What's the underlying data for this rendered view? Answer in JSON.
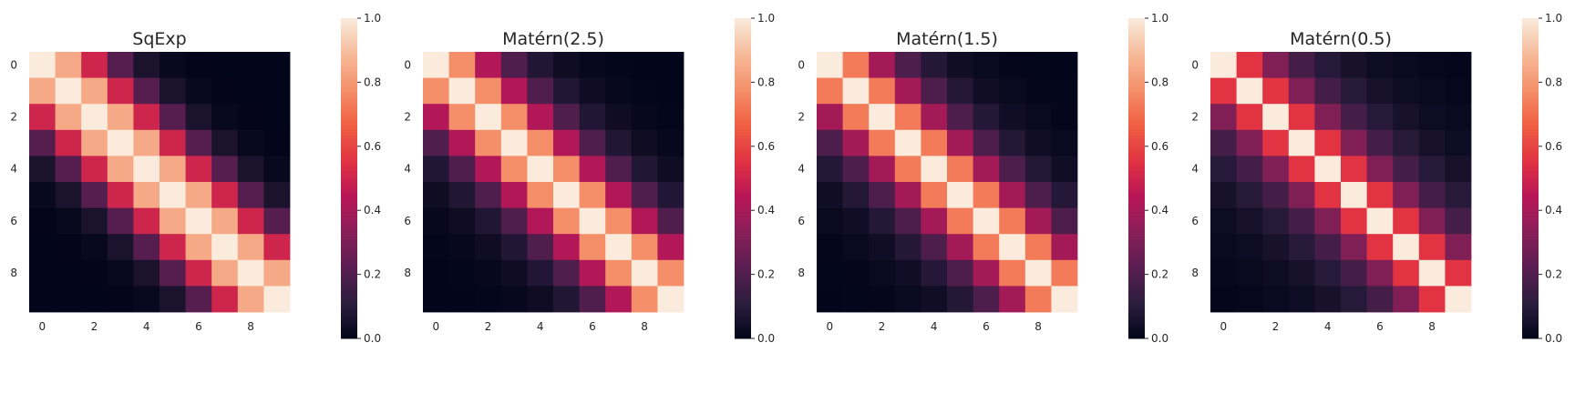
{
  "figure": {
    "description_title": ""
  },
  "chart_data": [
    {
      "type": "heatmap",
      "title": "SqExp",
      "n": 10,
      "kernel": "sqexp",
      "lengthscale": 1.7,
      "x_ticks": [
        "0",
        "2",
        "4",
        "6",
        "8"
      ],
      "y_ticks": [
        "0",
        "2",
        "4",
        "6",
        "8"
      ],
      "colorbar": {
        "min": 0.0,
        "max": 1.0,
        "ticks": [
          "0.0",
          "0.2",
          "0.4",
          "0.6",
          "0.8",
          "1.0"
        ]
      },
      "colormap": "rocket"
    },
    {
      "type": "heatmap",
      "title": "Matérn(2.5)",
      "n": 10,
      "kernel": "matern52",
      "lengthscale": 1.7,
      "x_ticks": [
        "0",
        "2",
        "4",
        "6",
        "8"
      ],
      "y_ticks": [
        "0",
        "2",
        "4",
        "6",
        "8"
      ],
      "colorbar": {
        "min": 0.0,
        "max": 1.0,
        "ticks": [
          "0.0",
          "0.2",
          "0.4",
          "0.6",
          "0.8",
          "1.0"
        ]
      },
      "colormap": "rocket"
    },
    {
      "type": "heatmap",
      "title": "Matérn(1.5)",
      "n": 10,
      "kernel": "matern32",
      "lengthscale": 1.7,
      "x_ticks": [
        "0",
        "2",
        "4",
        "6",
        "8"
      ],
      "y_ticks": [
        "0",
        "2",
        "4",
        "6",
        "8"
      ],
      "colorbar": {
        "min": 0.0,
        "max": 1.0,
        "ticks": [
          "0.0",
          "0.2",
          "0.4",
          "0.6",
          "0.8",
          "1.0"
        ]
      },
      "colormap": "rocket"
    },
    {
      "type": "heatmap",
      "title": "Matérn(0.5)",
      "n": 10,
      "kernel": "matern12",
      "lengthscale": 1.7,
      "x_ticks": [
        "0",
        "2",
        "4",
        "6",
        "8"
      ],
      "y_ticks": [
        "0",
        "2",
        "4",
        "6",
        "8"
      ],
      "colorbar": {
        "min": 0.0,
        "max": 1.0,
        "ticks": [
          "0.0",
          "0.2",
          "0.4",
          "0.6",
          "0.8",
          "1.0"
        ]
      },
      "colormap": "rocket"
    }
  ],
  "colormap_stops": [
    "#03051a",
    "#2d1e3e",
    "#5a1e51",
    "#8a1f58",
    "#b91657",
    "#e13342",
    "#f06043",
    "#f5906b",
    "#f6bb9b",
    "#faebdd"
  ]
}
